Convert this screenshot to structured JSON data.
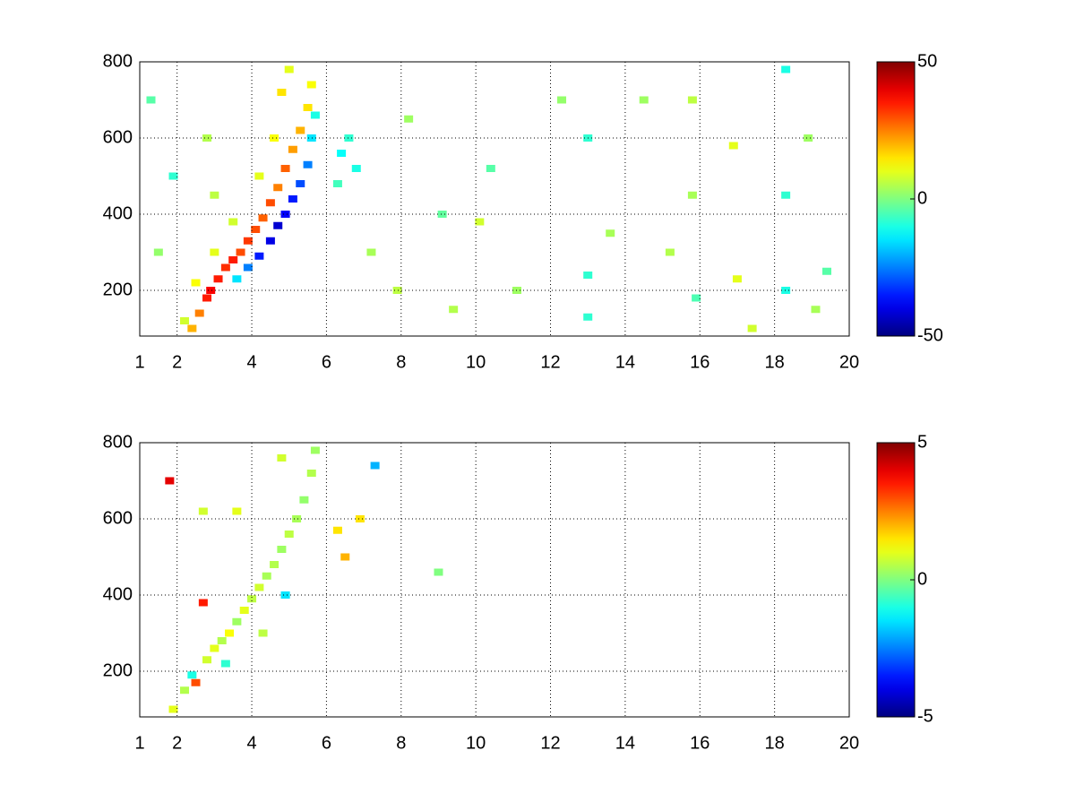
{
  "chart_data": [
    {
      "type": "heatmap",
      "x": [
        2.4,
        2.6,
        2.8,
        2.9,
        3.1,
        3.3,
        3.5,
        3.7,
        3.9,
        4.1,
        4.3,
        4.5,
        4.7,
        4.9,
        5.1,
        5.3,
        5.5,
        5.6,
        3.6,
        3.9,
        4.2,
        4.5,
        4.7,
        4.9,
        5.1,
        5.3,
        5.5,
        5.6,
        5.7,
        2.2,
        2.5,
        3.0,
        3.5,
        3.0,
        2.8,
        4.2,
        4.6,
        4.8,
        5.0,
        6.4,
        6.6,
        6.8,
        6.3,
        7.2,
        7.9,
        8.2,
        9.1,
        9.4,
        10.1,
        10.4,
        11.1,
        12.3,
        13.0,
        13.0,
        13.0,
        13.6,
        14.5,
        15.2,
        15.8,
        15.9,
        15.8,
        16.9,
        17.0,
        17.4,
        18.3,
        18.3,
        18.3,
        18.9,
        19.4,
        19.1,
        1.3,
        1.9,
        1.5
      ],
      "y": [
        100,
        140,
        180,
        200,
        230,
        260,
        280,
        300,
        330,
        360,
        390,
        430,
        470,
        520,
        570,
        620,
        680,
        740,
        230,
        260,
        290,
        330,
        370,
        400,
        440,
        480,
        530,
        600,
        660,
        120,
        220,
        300,
        380,
        450,
        600,
        500,
        600,
        720,
        780,
        560,
        600,
        520,
        480,
        300,
        200,
        650,
        400,
        150,
        380,
        520,
        200,
        700,
        240,
        600,
        130,
        350,
        700,
        300,
        700,
        180,
        450,
        580,
        230,
        100,
        780,
        450,
        200,
        600,
        250,
        150,
        700,
        500,
        300
      ],
      "values": [
        20,
        25,
        35,
        38,
        35,
        33,
        35,
        30,
        32,
        30,
        28,
        30,
        25,
        28,
        22,
        20,
        15,
        12,
        -15,
        -25,
        -35,
        -40,
        -42,
        -38,
        -35,
        -30,
        -25,
        -15,
        -10,
        8,
        12,
        10,
        8,
        6,
        5,
        10,
        12,
        15,
        10,
        -12,
        -8,
        -10,
        -6,
        4,
        6,
        3,
        -3,
        5,
        8,
        -4,
        3,
        2,
        -8,
        -8,
        -8,
        4,
        3,
        5,
        6,
        -5,
        4,
        10,
        10,
        8,
        -10,
        -8,
        -10,
        3,
        -4,
        4,
        -4,
        -8,
        2
      ],
      "xlim": [
        1,
        20
      ],
      "xticks": [
        1,
        2,
        4,
        6,
        8,
        10,
        12,
        14,
        16,
        18,
        20
      ],
      "ylim": [
        80,
        800
      ],
      "yticks": [
        200,
        400,
        600,
        800
      ],
      "clim": [
        -50,
        50
      ],
      "cticks": [
        -50,
        0,
        50
      ],
      "colormap": "jet",
      "grid": true
    },
    {
      "type": "heatmap",
      "x": [
        1.9,
        2.2,
        2.4,
        2.5,
        2.8,
        3.0,
        3.2,
        3.4,
        3.6,
        3.8,
        4.0,
        4.2,
        4.4,
        4.6,
        4.8,
        5.0,
        5.2,
        5.4,
        5.6,
        5.7,
        4.8,
        4.3,
        3.3,
        2.7,
        2.7,
        1.8,
        6.3,
        6.5,
        6.9,
        9.0,
        7.3,
        3.6,
        4.9
      ],
      "y": [
        100,
        150,
        190,
        170,
        230,
        260,
        280,
        300,
        330,
        360,
        390,
        420,
        450,
        480,
        520,
        560,
        600,
        650,
        720,
        780,
        760,
        300,
        220,
        620,
        380,
        700,
        570,
        500,
        600,
        460,
        740,
        620,
        400
      ],
      "values": [
        1,
        0.5,
        -1,
        3,
        0.8,
        1,
        0.5,
        1.2,
        0.3,
        1,
        0.6,
        0.8,
        0.4,
        0.5,
        0.3,
        0.6,
        0.4,
        0.2,
        0.5,
        0.3,
        0.8,
        0.6,
        -0.8,
        0.8,
        3.5,
        4,
        1.5,
        2,
        1.5,
        0,
        -2,
        1,
        -1.5
      ],
      "xlim": [
        1,
        20
      ],
      "xticks": [
        1,
        2,
        4,
        6,
        8,
        10,
        12,
        14,
        16,
        18,
        20
      ],
      "ylim": [
        80,
        800
      ],
      "yticks": [
        200,
        400,
        600,
        800
      ],
      "clim": [
        -5,
        5
      ],
      "cticks": [
        -5,
        0,
        5
      ],
      "colormap": "jet",
      "grid": true
    }
  ]
}
